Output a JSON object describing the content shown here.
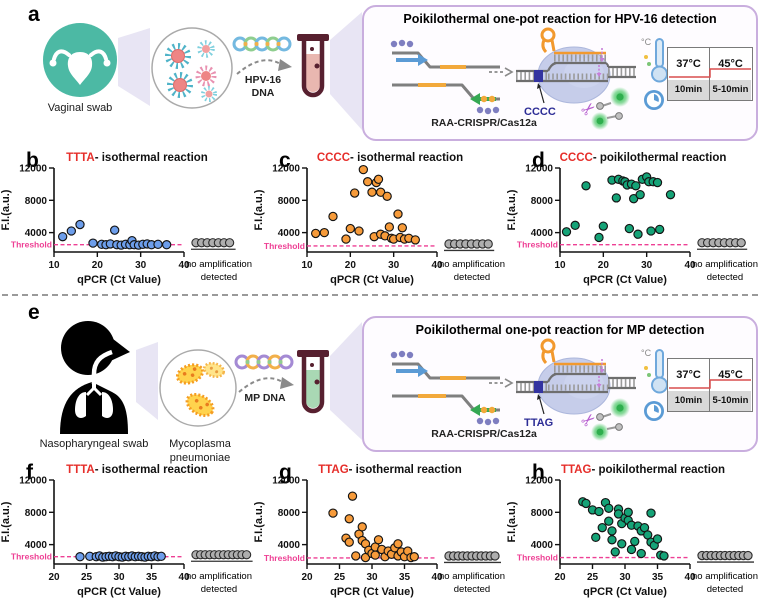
{
  "panels": {
    "a": {
      "letter": "a",
      "sample_label": "Vaginal swab",
      "dna_label_line1": "HPV-16",
      "dna_label_line2": "DNA",
      "box_title": "Poikilothermal one-pot reaction for HPV-16 detection",
      "pam_label": "CCCC",
      "system_label": "RAA-CRISPR/Cas12a",
      "temp_table": {
        "temp_left": "37°C",
        "temp_right": "45°C",
        "time_left": "10min",
        "time_right": "5-10min"
      }
    },
    "e": {
      "letter": "e",
      "sample_label": "Nasopharyngeal swab",
      "organism_line1": "Mycoplasma",
      "organism_line2": "pneumoniae",
      "dna_label_line1": "MP DNA",
      "dna_label_line2": "",
      "box_title": "Poikilothermal one-pot reaction for MP detection",
      "pam_label": "TTAG",
      "system_label": "RAA-CRISPR/Cas12a",
      "temp_table": {
        "temp_left": "37°C",
        "temp_right": "45°C",
        "time_left": "10min",
        "time_right": "5-10min"
      }
    }
  },
  "colors": {
    "title_red": "#e62e2a",
    "threshold_pink": "#ee3f94",
    "blue_dot": "#6d9eeb",
    "orange_dot": "#f79b3a",
    "green_dot": "#15a377",
    "gray_dot": "#aeaeae",
    "box_border": "#c9aede",
    "swab_teal": "#4cb9a4"
  },
  "chart_data": [
    {
      "panel": "b",
      "type": "scatter",
      "title_prefix": "TTTA",
      "title_rest": "- isothermal reaction",
      "xlabel": "qPCR (Ct Value)",
      "ylabel": "F.I.(a.u.)",
      "xlim": [
        10,
        40
      ],
      "ylim": [
        1600,
        12000
      ],
      "xticks": [
        10,
        20,
        30,
        40
      ],
      "yticks": [
        4000,
        8000,
        12000
      ],
      "threshold": 2500,
      "threshold_label": "Threshold",
      "dot_color": "#6d9eeb",
      "points": [
        [
          12,
          3500
        ],
        [
          14,
          4200
        ],
        [
          16,
          5000
        ],
        [
          19,
          2700
        ],
        [
          21,
          2550
        ],
        [
          22,
          2500
        ],
        [
          23,
          2600
        ],
        [
          24,
          4300
        ],
        [
          24.5,
          2500
        ],
        [
          25.5,
          2450
        ],
        [
          26.5,
          2550
        ],
        [
          27.5,
          2500
        ],
        [
          28,
          3000
        ],
        [
          28.5,
          2500
        ],
        [
          29.5,
          2450
        ],
        [
          30.5,
          2550
        ],
        [
          31.5,
          2600
        ],
        [
          32.5,
          2500
        ],
        [
          34,
          2550
        ],
        [
          36,
          2500
        ]
      ],
      "no_amp_line1": "no amplification",
      "no_amp_line2": "detected",
      "no_amp_count": 7
    },
    {
      "panel": "c",
      "type": "scatter",
      "title_prefix": "CCCC",
      "title_rest": "- isothermal reaction",
      "xlabel": "qPCR (Ct Value)",
      "ylabel": "F.I.(a.u.)",
      "xlim": [
        10,
        40
      ],
      "ylim": [
        1600,
        12000
      ],
      "xticks": [
        10,
        20,
        30,
        40
      ],
      "yticks": [
        4000,
        8000,
        12000
      ],
      "threshold": 2350,
      "threshold_label": "Threshold",
      "dot_color": "#f79b3a",
      "points": [
        [
          12,
          3900
        ],
        [
          14,
          4000
        ],
        [
          16,
          6000
        ],
        [
          19,
          3200
        ],
        [
          20,
          4500
        ],
        [
          21,
          8900
        ],
        [
          22,
          4200
        ],
        [
          23,
          11800
        ],
        [
          24,
          10300
        ],
        [
          25,
          9000
        ],
        [
          25.5,
          3500
        ],
        [
          26,
          10200
        ],
        [
          26.5,
          10600
        ],
        [
          27,
          9000
        ],
        [
          27,
          3800
        ],
        [
          28,
          3600
        ],
        [
          28.5,
          8500
        ],
        [
          29,
          4700
        ],
        [
          29.5,
          3300
        ],
        [
          30,
          3200
        ],
        [
          31,
          6300
        ],
        [
          31.5,
          3400
        ],
        [
          32,
          4600
        ],
        [
          32.5,
          3200
        ],
        [
          33.5,
          3300
        ],
        [
          35,
          3100
        ]
      ],
      "no_amp_line1": "no amplification",
      "no_amp_line2": "detected",
      "no_amp_count": 8
    },
    {
      "panel": "d",
      "type": "scatter",
      "title_prefix": "CCCC",
      "title_rest": "- poikilothermal reaction",
      "xlabel": "qPCR (Ct Value)",
      "ylabel": "F.I.(a.u.)",
      "xlim": [
        10,
        40
      ],
      "ylim": [
        1600,
        12000
      ],
      "xticks": [
        10,
        20,
        30,
        40
      ],
      "yticks": [
        4000,
        8000,
        12000
      ],
      "threshold": 2500,
      "threshold_label": "Threshold",
      "dot_color": "#15a377",
      "points": [
        [
          11.5,
          4100
        ],
        [
          13.5,
          4900
        ],
        [
          16,
          9800
        ],
        [
          19,
          3400
        ],
        [
          20,
          4800
        ],
        [
          22,
          10500
        ],
        [
          23,
          8300
        ],
        [
          23.5,
          10600
        ],
        [
          24.5,
          10400
        ],
        [
          25,
          10300
        ],
        [
          25.5,
          9900
        ],
        [
          26,
          4500
        ],
        [
          26.5,
          10000
        ],
        [
          27,
          8200
        ],
        [
          27.5,
          9800
        ],
        [
          28,
          3800
        ],
        [
          28.5,
          8700
        ],
        [
          29,
          10600
        ],
        [
          30,
          10900
        ],
        [
          30.5,
          10300
        ],
        [
          31,
          4200
        ],
        [
          31.5,
          10300
        ],
        [
          32.5,
          10200
        ],
        [
          33,
          4400
        ],
        [
          35.5,
          8700
        ]
      ],
      "no_amp_line1": "no amplification",
      "no_amp_line2": "detected",
      "no_amp_count": 8
    },
    {
      "panel": "f",
      "type": "scatter",
      "title_prefix": "TTTA",
      "title_rest": "- isothermal reaction",
      "xlabel": "qPCR (Ct Value)",
      "ylabel": "F.I.(a.u.)",
      "xlim": [
        20,
        40
      ],
      "ylim": [
        1600,
        12000
      ],
      "xticks": [
        20,
        25,
        30,
        35,
        40
      ],
      "yticks": [
        4000,
        8000,
        12000
      ],
      "threshold": 2500,
      "threshold_label": "Threshold",
      "dot_color": "#6d9eeb",
      "points": [
        [
          24,
          2500
        ],
        [
          25.5,
          2550
        ],
        [
          26.5,
          2500
        ],
        [
          27,
          2600
        ],
        [
          27.5,
          2450
        ],
        [
          28,
          2500
        ],
        [
          28.5,
          2550
        ],
        [
          29,
          2500
        ],
        [
          29.5,
          2600
        ],
        [
          30,
          2500
        ],
        [
          30.5,
          2450
        ],
        [
          31,
          2550
        ],
        [
          31.5,
          2500
        ],
        [
          32,
          2600
        ],
        [
          32.5,
          2500
        ],
        [
          33,
          2550
        ],
        [
          33.5,
          2500
        ],
        [
          34,
          2450
        ],
        [
          34.5,
          2550
        ],
        [
          35,
          2500
        ],
        [
          35.5,
          2600
        ],
        [
          36,
          2500
        ],
        [
          36.5,
          2550
        ]
      ],
      "no_amp_line1": "no amplification",
      "no_amp_line2": "detected",
      "no_amp_count": 12
    },
    {
      "panel": "g",
      "type": "scatter",
      "title_prefix": "TTAG",
      "title_rest": "- isothermal reaction",
      "xlabel": "qPCR (Ct Value)",
      "ylabel": "F.I.(a.u.)",
      "xlim": [
        20,
        40
      ],
      "ylim": [
        1600,
        12000
      ],
      "xticks": [
        20,
        25,
        30,
        35,
        40
      ],
      "yticks": [
        4000,
        8000,
        12000
      ],
      "threshold": 2350,
      "threshold_label": "Threshold",
      "dot_color": "#f79b3a",
      "points": [
        [
          24,
          7900
        ],
        [
          26,
          4800
        ],
        [
          26.5,
          7200
        ],
        [
          26.5,
          4300
        ],
        [
          27,
          10000
        ],
        [
          27.5,
          2600
        ],
        [
          28,
          5300
        ],
        [
          28.5,
          6200
        ],
        [
          28.5,
          4500
        ],
        [
          29,
          4100
        ],
        [
          29,
          2400
        ],
        [
          29.5,
          3300
        ],
        [
          30,
          2900
        ],
        [
          30.5,
          3700
        ],
        [
          30.5,
          2700
        ],
        [
          31,
          4600
        ],
        [
          31.5,
          3400
        ],
        [
          32,
          2500
        ],
        [
          32.5,
          3200
        ],
        [
          33,
          2800
        ],
        [
          33.5,
          3600
        ],
        [
          34,
          4100
        ],
        [
          34,
          2600
        ],
        [
          34.5,
          3100
        ],
        [
          35,
          2500
        ],
        [
          35.5,
          3200
        ],
        [
          36,
          2400
        ],
        [
          36.5,
          2500
        ]
      ],
      "no_amp_line1": "no amplification",
      "no_amp_line2": "detected",
      "no_amp_count": 11
    },
    {
      "panel": "h",
      "type": "scatter",
      "title_prefix": "TTAG",
      "title_rest": "- poikilothermal reaction",
      "xlabel": "qPCR (Ct Value)",
      "ylabel": "F.I.(a.u.)",
      "xlim": [
        20,
        40
      ],
      "ylim": [
        1600,
        12000
      ],
      "xticks": [
        20,
        25,
        30,
        35,
        40
      ],
      "yticks": [
        4000,
        8000,
        12000
      ],
      "threshold": 2400,
      "threshold_label": "Threshold",
      "dot_color": "#15a377",
      "points": [
        [
          23.5,
          9300
        ],
        [
          24,
          9100
        ],
        [
          25,
          8300
        ],
        [
          25.5,
          4900
        ],
        [
          26,
          8100
        ],
        [
          26.5,
          6100
        ],
        [
          27,
          9200
        ],
        [
          27.5,
          8500
        ],
        [
          27.5,
          6900
        ],
        [
          28,
          5700
        ],
        [
          28,
          4600
        ],
        [
          28.5,
          3100
        ],
        [
          29,
          8400
        ],
        [
          29,
          7800
        ],
        [
          29.5,
          6600
        ],
        [
          29.5,
          4100
        ],
        [
          30,
          7300
        ],
        [
          30.5,
          8000
        ],
        [
          30.5,
          7000
        ],
        [
          31,
          6400
        ],
        [
          31,
          3400
        ],
        [
          31.5,
          4400
        ],
        [
          32,
          6300
        ],
        [
          32.5,
          5700
        ],
        [
          32.5,
          2900
        ],
        [
          33,
          6100
        ],
        [
          33.5,
          5200
        ],
        [
          34,
          7900
        ],
        [
          34,
          4300
        ],
        [
          34.5,
          3900
        ],
        [
          35,
          4700
        ],
        [
          35.5,
          2700
        ],
        [
          36,
          2600
        ]
      ],
      "no_amp_line1": "no amplification",
      "no_amp_line2": "detected",
      "no_amp_count": 11
    }
  ]
}
